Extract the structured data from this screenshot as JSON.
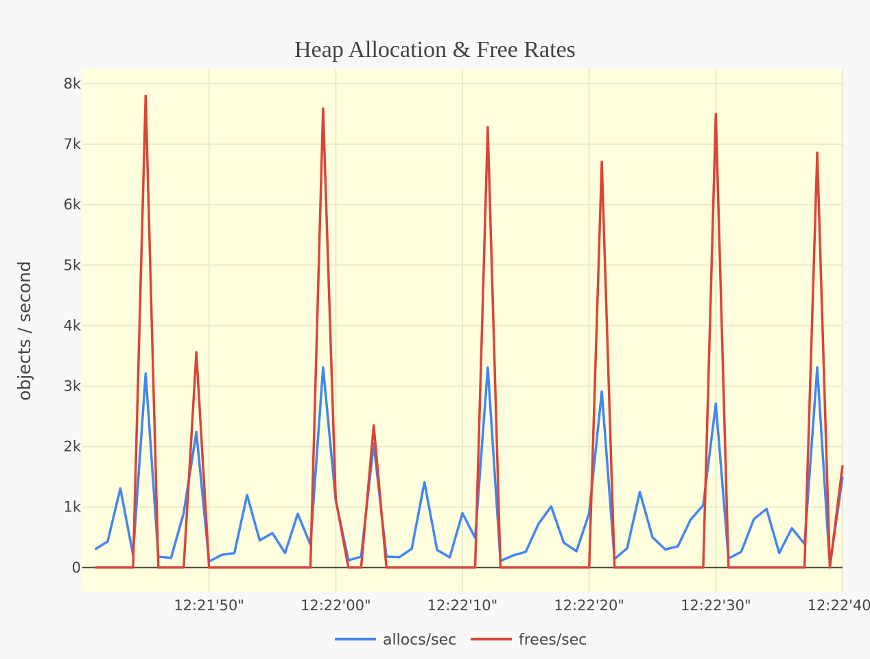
{
  "chart_data": {
    "type": "line",
    "title": "Heap Allocation & Free Rates",
    "xlabel": "",
    "ylabel": "objects / second",
    "x_start": "12:21:41",
    "x_step_seconds": 1,
    "xlim": [
      "12:21:40",
      "12:22:40"
    ],
    "ylim": [
      -400,
      8250
    ],
    "yticks": [
      0,
      1000,
      2000,
      3000,
      4000,
      5000,
      6000,
      7000,
      8000
    ],
    "ytick_labels": [
      "0",
      "1k",
      "2k",
      "3k",
      "4k",
      "5k",
      "6k",
      "7k",
      "8k"
    ],
    "xticks": [
      "12:21:50",
      "12:22:00",
      "12:22:10",
      "12:22:20",
      "12:22:30",
      "12:22:40"
    ],
    "xtick_labels": [
      "12:21'50\"",
      "12:22'00\"",
      "12:22'10\"",
      "12:22'20\"",
      "12:22'30\"",
      "12:22'40\""
    ],
    "grid": true,
    "legend_position": "bottom-center",
    "plot_background": "#ffffdd",
    "series": [
      {
        "name": "allocs/sec",
        "color": "#4285f4",
        "values": [
          300,
          430,
          1310,
          210,
          3210,
          180,
          160,
          900,
          2240,
          100,
          210,
          240,
          1200,
          450,
          570,
          240,
          890,
          380,
          3310,
          1110,
          120,
          180,
          2050,
          180,
          170,
          310,
          1410,
          290,
          170,
          900,
          490,
          3310,
          110,
          200,
          260,
          720,
          1010,
          410,
          270,
          900,
          2910,
          140,
          320,
          1250,
          500,
          300,
          350,
          790,
          1030,
          2710,
          150,
          260,
          800,
          970,
          240,
          650,
          390,
          3310,
          20,
          1500
        ]
      },
      {
        "name": "frees/sec",
        "color": "#db4437",
        "values": [
          0,
          0,
          0,
          0,
          7800,
          0,
          0,
          0,
          3560,
          0,
          0,
          0,
          0,
          0,
          0,
          0,
          0,
          0,
          7590,
          1130,
          0,
          0,
          2350,
          0,
          0,
          0,
          0,
          0,
          0,
          0,
          0,
          7280,
          0,
          0,
          0,
          0,
          0,
          0,
          0,
          0,
          6710,
          0,
          0,
          0,
          0,
          0,
          0,
          0,
          0,
          7500,
          0,
          0,
          0,
          0,
          0,
          0,
          0,
          6860,
          0,
          1690
        ]
      }
    ]
  }
}
